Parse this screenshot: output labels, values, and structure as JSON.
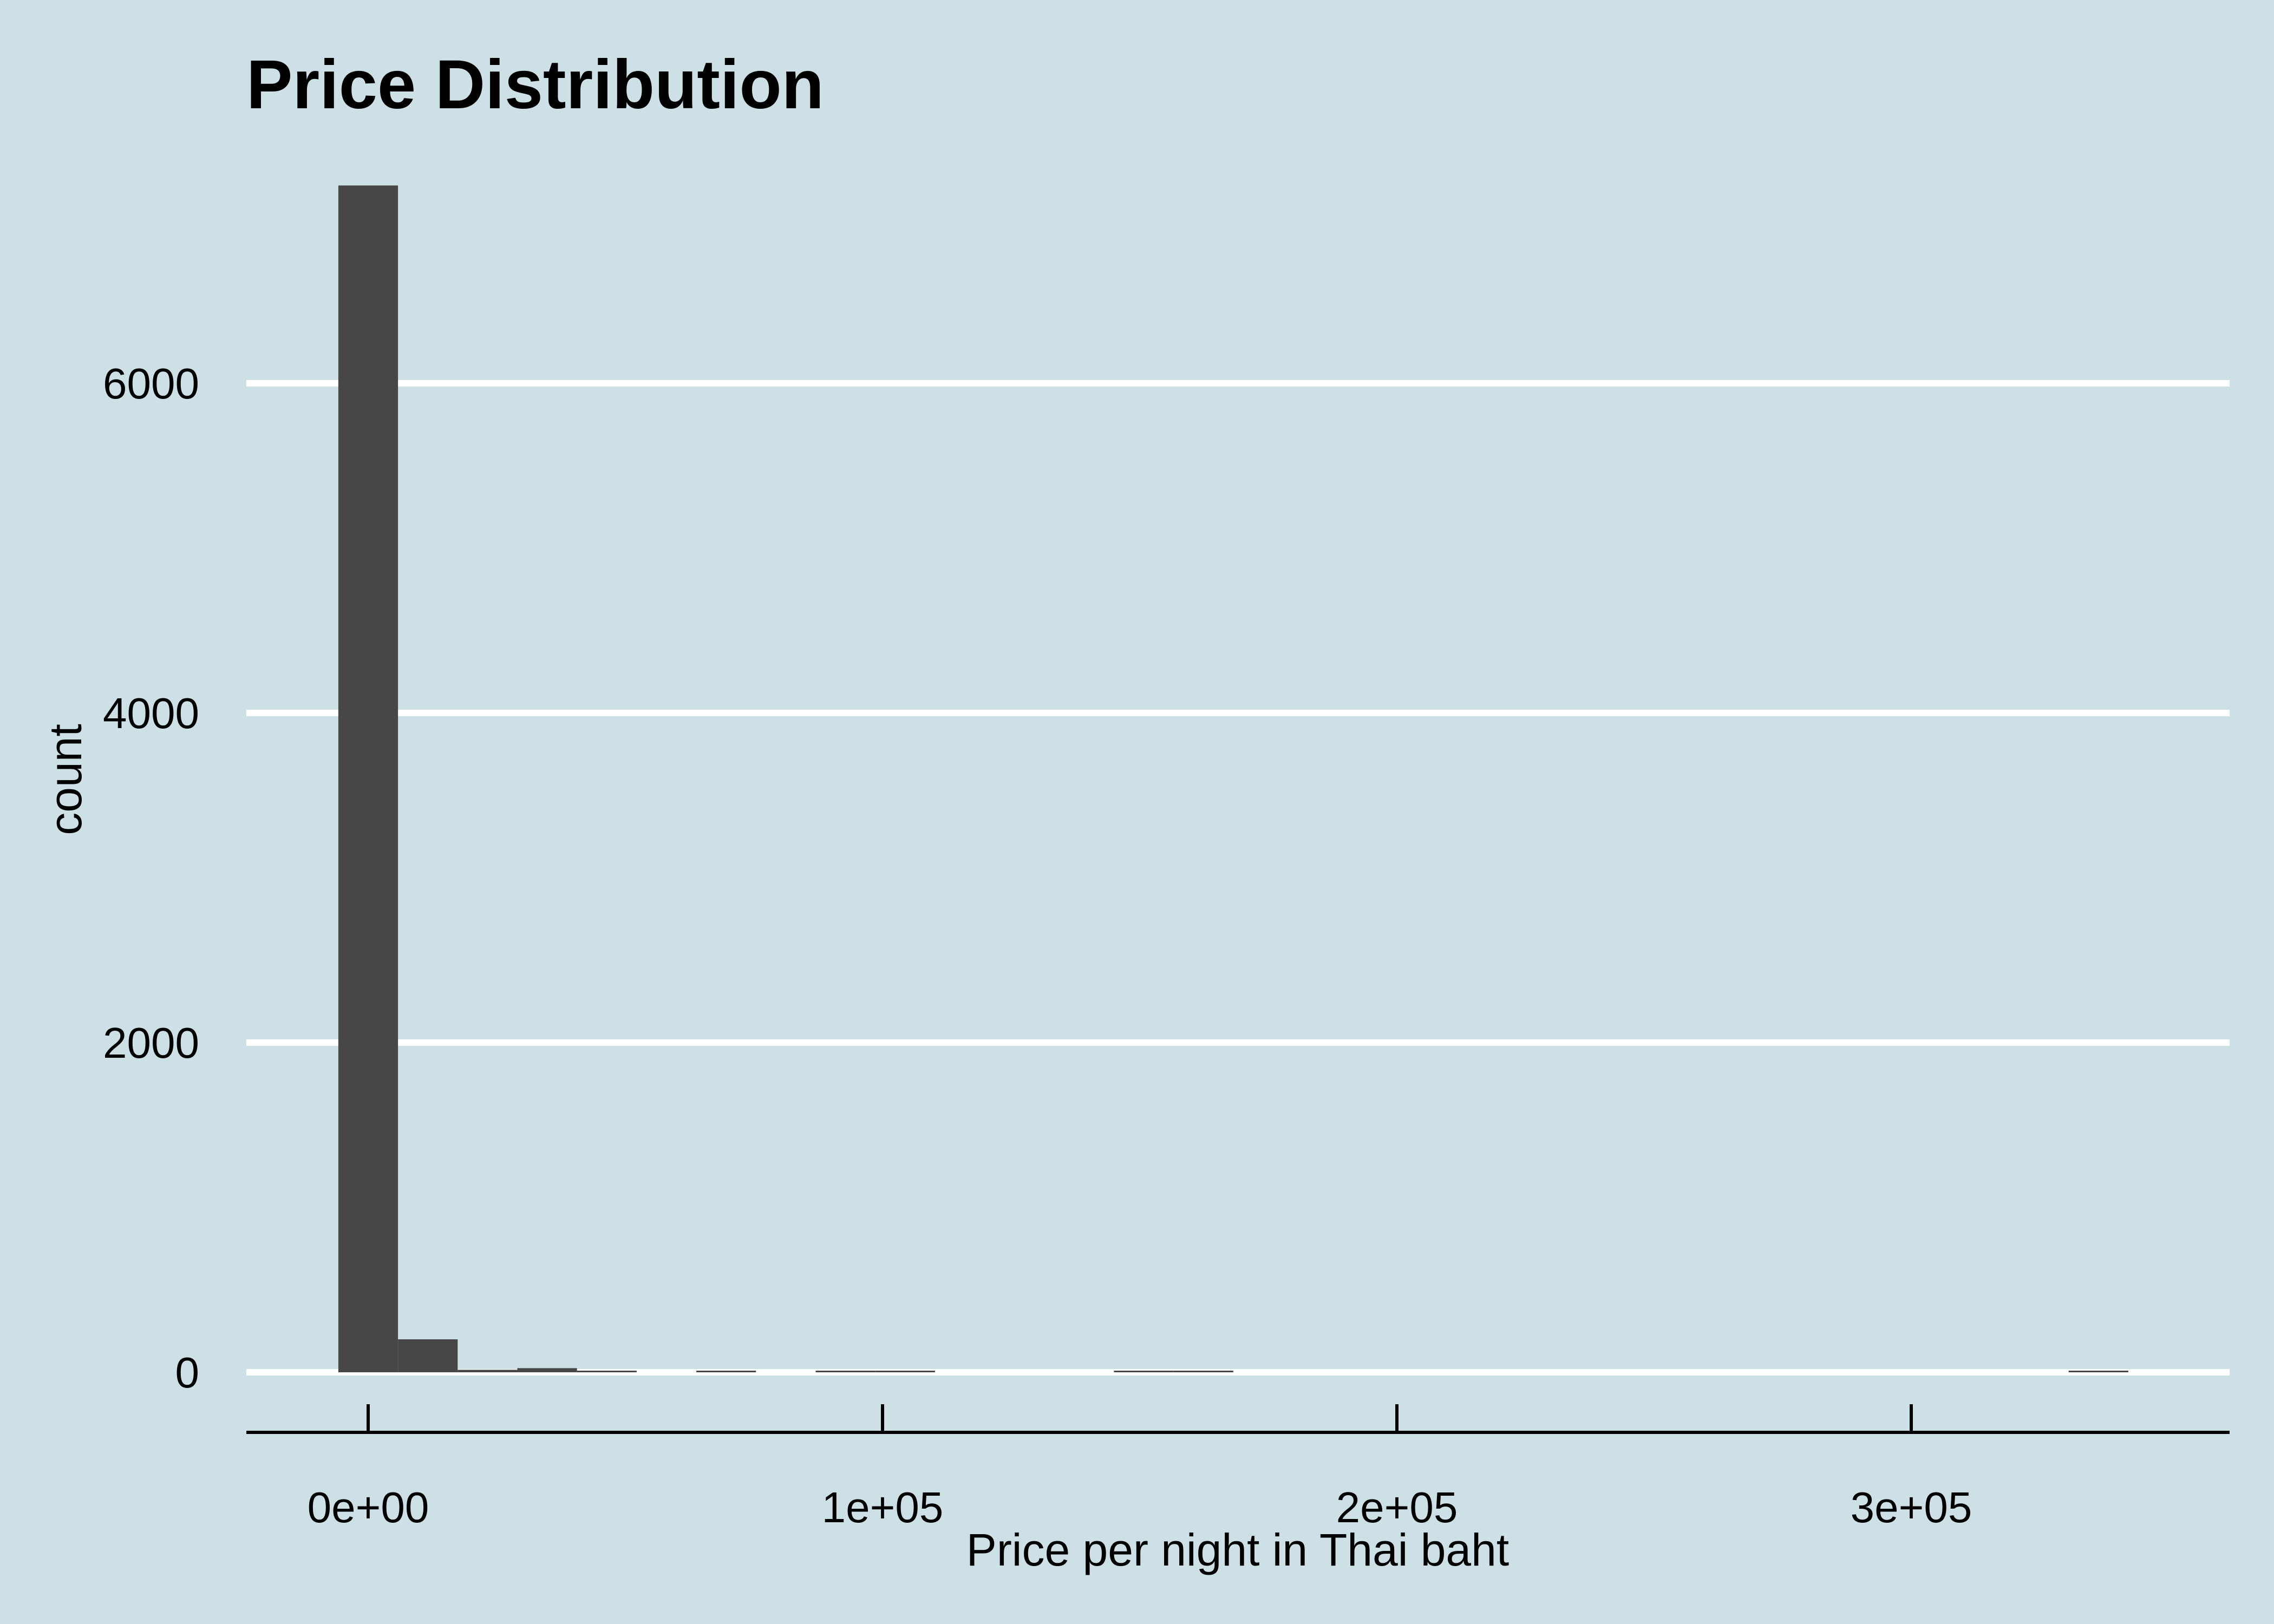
{
  "chart_data": {
    "type": "bar",
    "title": "Price Distribution",
    "xlabel": "Price per night in Thai baht",
    "ylabel": "count",
    "bin_width": 11600,
    "bin_centers": [
      0,
      11600,
      23200,
      34800,
      46400,
      58000,
      69600,
      81200,
      92800,
      104400,
      116000,
      127600,
      139200,
      150800,
      162400,
      174000,
      185600,
      197200,
      208800,
      220400,
      232000,
      243600,
      255200,
      266800,
      278400,
      290000,
      301600,
      313200,
      324800,
      336400
    ],
    "counts": [
      7200,
      200,
      15,
      25,
      8,
      0,
      4,
      0,
      5,
      8,
      0,
      0,
      0,
      4,
      3,
      0,
      0,
      0,
      0,
      0,
      0,
      0,
      0,
      0,
      0,
      0,
      0,
      0,
      0,
      3
    ],
    "x_ticks": [
      0,
      100000,
      200000,
      300000
    ],
    "x_tick_labels": [
      "0e+00",
      "1e+05",
      "2e+05",
      "3e+05"
    ],
    "y_ticks": [
      0,
      2000,
      4000,
      6000
    ],
    "y_tick_labels": [
      "0",
      "2000",
      "4000",
      "6000"
    ],
    "xlim": [
      -23200,
      360000
    ],
    "ylim": [
      -360,
      7200
    ],
    "grid": "horizontal-major",
    "bar_color": "#474747",
    "background_color": "#cde0e6",
    "grid_color": "#ffffff"
  }
}
